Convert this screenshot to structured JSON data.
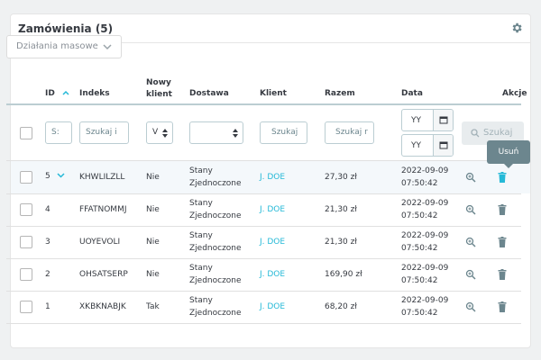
{
  "header": {
    "title": "Zamówienia (5)",
    "settings_icon": "gear-icon"
  },
  "bulk_actions": {
    "label": "Działania masowe"
  },
  "columns": {
    "id": "ID",
    "index": "Indeks",
    "new_client_line1": "Nowy",
    "new_client_line2": "klient",
    "delivery": "Dostawa",
    "client": "Klient",
    "total": "Razem",
    "date": "Data",
    "actions": "Akcje"
  },
  "filters": {
    "id_value": "S:",
    "index_placeholder": "Szukaj i",
    "new_client_value": "V",
    "client_placeholder": "Szukaj",
    "total_placeholder": "Szukaj r",
    "date_from": "YY",
    "date_to": "YY",
    "search_label": "Szukaj"
  },
  "tooltip": {
    "text": "Usuń"
  },
  "colors": {
    "accent": "#25b9d7",
    "text": "#363a41",
    "muted": "#6c868e"
  },
  "rows": [
    {
      "id": "5",
      "index": "KHWLILZLL",
      "new_client": "Nie",
      "delivery_line1": "Stany",
      "delivery_line2": "Zjednoczone",
      "client": "J. DOE",
      "total": "27,30 zł",
      "date": "2022-09-09",
      "time": "07:50:42"
    },
    {
      "id": "4",
      "index": "FFATNOMMJ",
      "new_client": "Nie",
      "delivery_line1": "Stany",
      "delivery_line2": "Zjednoczone",
      "client": "J. DOE",
      "total": "21,30 zł",
      "date": "2022-09-09",
      "time": "07:50:42"
    },
    {
      "id": "3",
      "index": "UOYEVOLI",
      "new_client": "Nie",
      "delivery_line1": "Stany",
      "delivery_line2": "Zjednoczone",
      "client": "J. DOE",
      "total": "21,30 zł",
      "date": "2022-09-09",
      "time": "07:50:42"
    },
    {
      "id": "2",
      "index": "OHSATSERP",
      "new_client": "Nie",
      "delivery_line1": "Stany",
      "delivery_line2": "Zjednoczone",
      "client": "J. DOE",
      "total": "169,90 zł",
      "date": "2022-09-09",
      "time": "07:50:42"
    },
    {
      "id": "1",
      "index": "XKBKNABJK",
      "new_client": "Tak",
      "delivery_line1": "Stany",
      "delivery_line2": "Zjednoczone",
      "client": "J. DOE",
      "total": "68,20 zł",
      "date": "2022-09-09",
      "time": "07:50:42"
    }
  ]
}
